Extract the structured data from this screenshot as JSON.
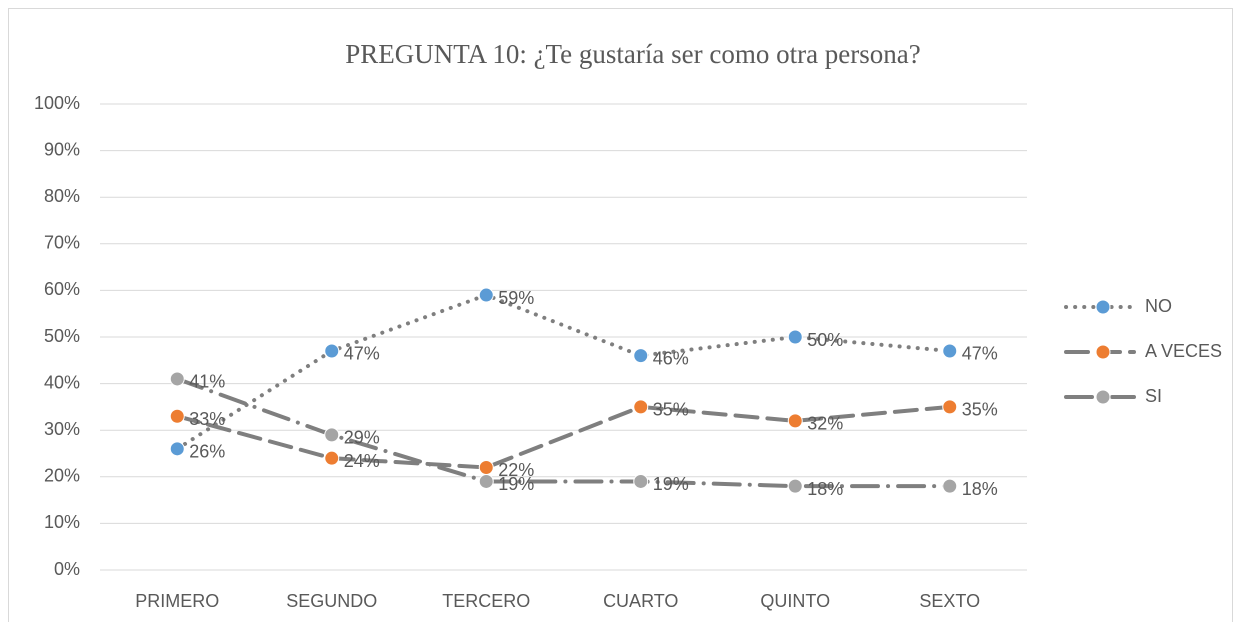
{
  "chart_data": {
    "type": "line",
    "title": "PREGUNTA 10: ¿Te gustaría ser como otra persona?",
    "categories": [
      "PRIMERO",
      "SEGUNDO",
      "TERCERO",
      "CUARTO",
      "QUINTO",
      "SEXTO"
    ],
    "series": [
      {
        "name": "NO",
        "color": "#5b9bd5",
        "line_color": "#7f7f7f",
        "line_style": "dot",
        "values": [
          26,
          47,
          59,
          46,
          50,
          47
        ],
        "value_labels": [
          "26%",
          "47%",
          "59%",
          "46%",
          "50%",
          "47%"
        ]
      },
      {
        "name": "A VECES",
        "color": "#ed7d31",
        "line_color": "#7f7f7f",
        "line_style": "dash",
        "values": [
          33,
          24,
          22,
          35,
          32,
          35
        ],
        "value_labels": [
          "33%",
          "24%",
          "22%",
          "35%",
          "32%",
          "35%"
        ]
      },
      {
        "name": "SI",
        "color": "#a5a5a5",
        "line_color": "#7f7f7f",
        "line_style": "longdashdot",
        "values": [
          41,
          29,
          19,
          19,
          18,
          18
        ],
        "value_labels": [
          "41%",
          "29%",
          "19%",
          "19%",
          "18%",
          "18%"
        ]
      }
    ],
    "ylim": [
      0,
      100
    ],
    "yticks": [
      {
        "value": 0,
        "label": "0%"
      },
      {
        "value": 10,
        "label": "10%"
      },
      {
        "value": 20,
        "label": "20%"
      },
      {
        "value": 30,
        "label": "30%"
      },
      {
        "value": 40,
        "label": "40%"
      },
      {
        "value": 50,
        "label": "50%"
      },
      {
        "value": 60,
        "label": "60%"
      },
      {
        "value": 70,
        "label": "70%"
      },
      {
        "value": 80,
        "label": "80%"
      },
      {
        "value": 90,
        "label": "90%"
      },
      {
        "value": 100,
        "label": "100%"
      }
    ],
    "grid": true,
    "legend": "right"
  }
}
